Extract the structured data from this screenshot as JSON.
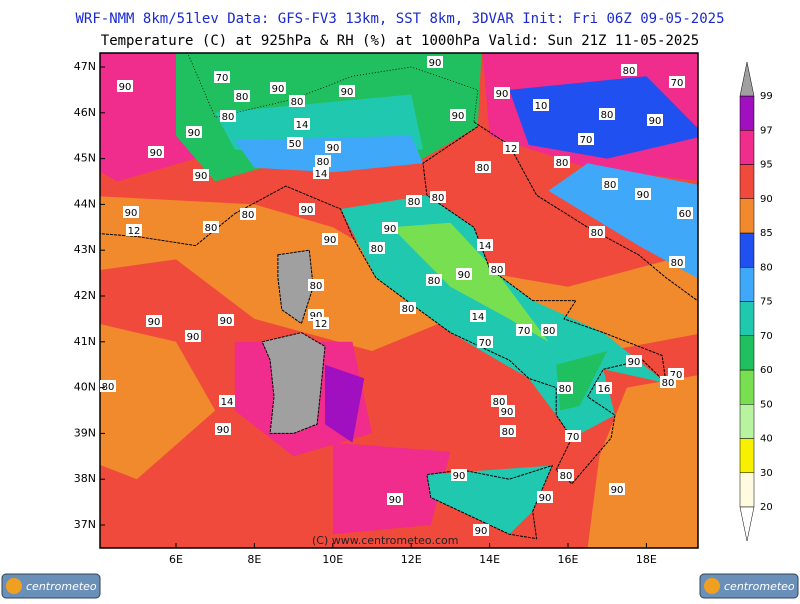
{
  "header": {
    "line1": "WRF-NMM 8km/51lev  Data: GFS-FV3 13km, SST 8km, 3DVAR  Init: Fri 06Z 09-05-2025",
    "line2": "Temperature (C) at 925hPa & RH (%) at 1000hPa  Valid: Sun 21Z 11-05-2025"
  },
  "lat_labels": [
    "47N",
    "46N",
    "45N",
    "44N",
    "43N",
    "42N",
    "41N",
    "40N",
    "39N",
    "38N",
    "37N"
  ],
  "lon_labels": [
    "6E",
    "8E",
    "10E",
    "12E",
    "14E",
    "16E",
    "18E"
  ],
  "colorbar": {
    "ticks": [
      20,
      30,
      40,
      50,
      60,
      70,
      75,
      80,
      85,
      90,
      95,
      97,
      99
    ],
    "colors": [
      "#fffbe0",
      "#f7f000",
      "#b8f4a0",
      "#78e050",
      "#20c060",
      "#20c8b0",
      "#40a8f8",
      "#2050f0",
      "#f08a2c",
      "#f04a3c",
      "#f02c8c",
      "#a010c0"
    ]
  },
  "contour_labels": [
    90,
    70,
    80,
    90,
    80,
    90,
    90,
    80,
    70,
    80,
    14,
    90,
    50,
    90,
    90,
    90,
    90,
    10,
    80,
    90,
    70,
    12,
    80,
    14,
    90,
    80,
    80,
    80,
    90,
    90,
    80,
    90,
    80,
    80,
    60,
    12,
    80,
    90,
    90,
    80,
    14,
    80,
    90,
    80,
    80,
    80,
    80,
    80,
    90,
    90,
    90,
    12,
    90,
    14,
    70,
    80,
    70,
    90,
    80,
    80,
    16,
    70,
    80,
    14,
    80,
    90,
    90,
    80,
    70,
    90,
    80,
    90,
    90,
    90,
    90
  ],
  "footer": "(C) www.centrometeo.com",
  "logo_left": "centrometeo",
  "logo_right": "centrometeo"
}
